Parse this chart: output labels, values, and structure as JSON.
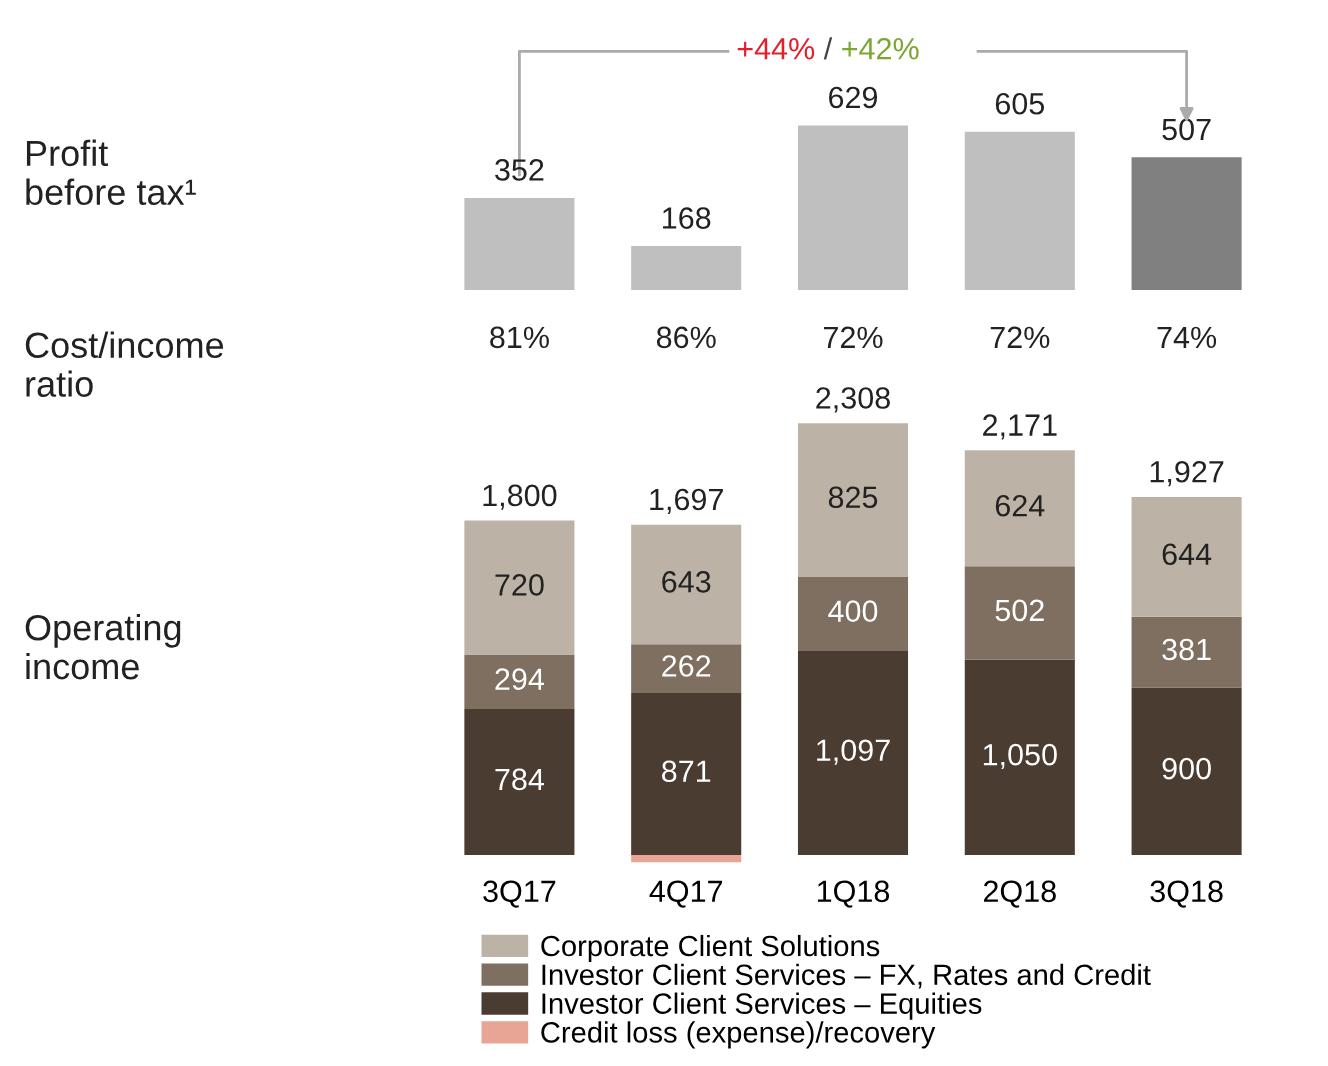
{
  "chart_data": [
    {
      "type": "bar",
      "ylabel": "Profit\nbefore tax¹",
      "categories": [
        null,
        null,
        null,
        null,
        null
      ],
      "values": [
        352,
        168,
        629,
        605,
        507
      ],
      "colors": [
        "#bfbfbf",
        "#bfbfbf",
        "#bfbfbf",
        "#bfbfbf",
        "#808080"
      ],
      "data_labels": true,
      "annotations": [
        "+44%",
        " / ",
        "+42%"
      ]
    },
    {
      "type": "other",
      "ylabel": "Cost/income\nratio",
      "annotations": [
        "81%",
        "86%",
        "72%",
        "72%",
        "74%"
      ]
    },
    {
      "type": "bar",
      "ylabel": "Operating\nincome",
      "stacked": true,
      "legend": "bottom",
      "categories": [
        "3Q17",
        "4Q17",
        "1Q18",
        "2Q18",
        "3Q18"
      ],
      "series": [
        {
          "name": "Investor Client Services – Equities",
          "color": "#4b3c31",
          "values": [
            784,
            871,
            1097,
            1050,
            900
          ],
          "value_labels": [
            "784",
            "871",
            "1,097",
            "1,050",
            "900"
          ]
        },
        {
          "name": "Investor Client Services – FX, Rates and Credit",
          "color": "#7e6f61",
          "values": [
            294,
            262,
            400,
            502,
            381
          ],
          "value_labels": [
            "294",
            "262",
            "400",
            "502",
            "381"
          ]
        },
        {
          "name": "Corporate Client Solutions",
          "color": "#bcb3a6",
          "values": [
            720,
            643,
            825,
            624,
            644
          ],
          "value_labels": [
            "720",
            "643",
            "825",
            "624",
            "644"
          ]
        },
        {
          "name": "Credit loss (expense)/recovery",
          "color": "#e8a595",
          "values": [
            null,
            -40,
            null,
            null,
            null
          ]
        }
      ],
      "annotations": [
        "1,800",
        "1,697",
        "2,308",
        "2,171",
        "1,927"
      ]
    }
  ]
}
